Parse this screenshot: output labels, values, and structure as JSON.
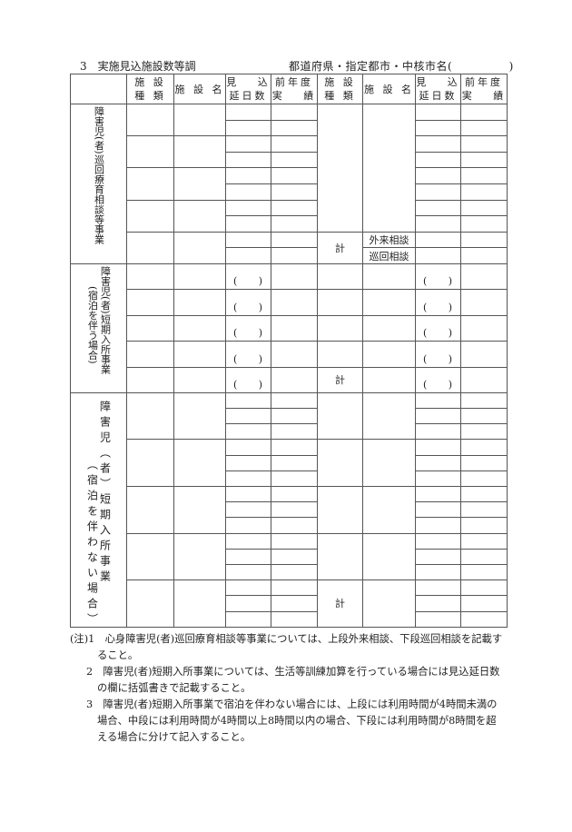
{
  "title": "3　実施見込施設数等調",
  "region_label": "都道府県・指定都市・中核市名(　　　　　)",
  "headers": [
    {
      "lines": [
        "施 設",
        "種 類"
      ]
    },
    {
      "lines": [
        "施 設 名"
      ]
    },
    {
      "lines": [
        "見　 込",
        "延日数"
      ]
    },
    {
      "lines": [
        "前年度",
        "実　 績"
      ]
    },
    {
      "lines": [
        "施 設",
        "種 類"
      ]
    },
    {
      "lines": [
        "施 設 名"
      ]
    },
    {
      "lines": [
        "見　 込",
        "延日数"
      ]
    },
    {
      "lines": [
        "前年度",
        "実　 績"
      ]
    }
  ],
  "sections": {
    "patrol": {
      "label": [
        "障害児(者)巡回療育相談等事業"
      ],
      "total_label": "計",
      "sub_rows": [
        "外来相談",
        "巡回相談"
      ]
    },
    "short_stay_overnight": {
      "label": [
        "障害児(者)短期入所事業",
        "(宿泊を伴う場合)"
      ],
      "total_label": "計",
      "paren_open": "(",
      "paren_close": ")"
    },
    "short_stay_day": {
      "label": [
        "障　害　児　︵　者　︶　短　期　入　所　事　業",
        "︵　宿　泊　を　伴　わ　な　い　場　合　︶"
      ],
      "total_label": "計"
    }
  },
  "notes": [
    "(注)1　心身障害児(者)巡回療育相談等事業については、上段外来相談、下段巡回相談を記載すること。",
    "2　障害児(者)短期入所事業については、生活等訓練加算を行っている場合には見込延日数の欄に括弧書きで記載すること。",
    "3　障害児(者)短期入所事業で宿泊を伴わない場合には、上段には利用時間が4時間未満の場合、中段には利用時間が4時間以上8時間以内の場合、下段には利用時間が8時間を超える場合に分けて記入すること。"
  ]
}
